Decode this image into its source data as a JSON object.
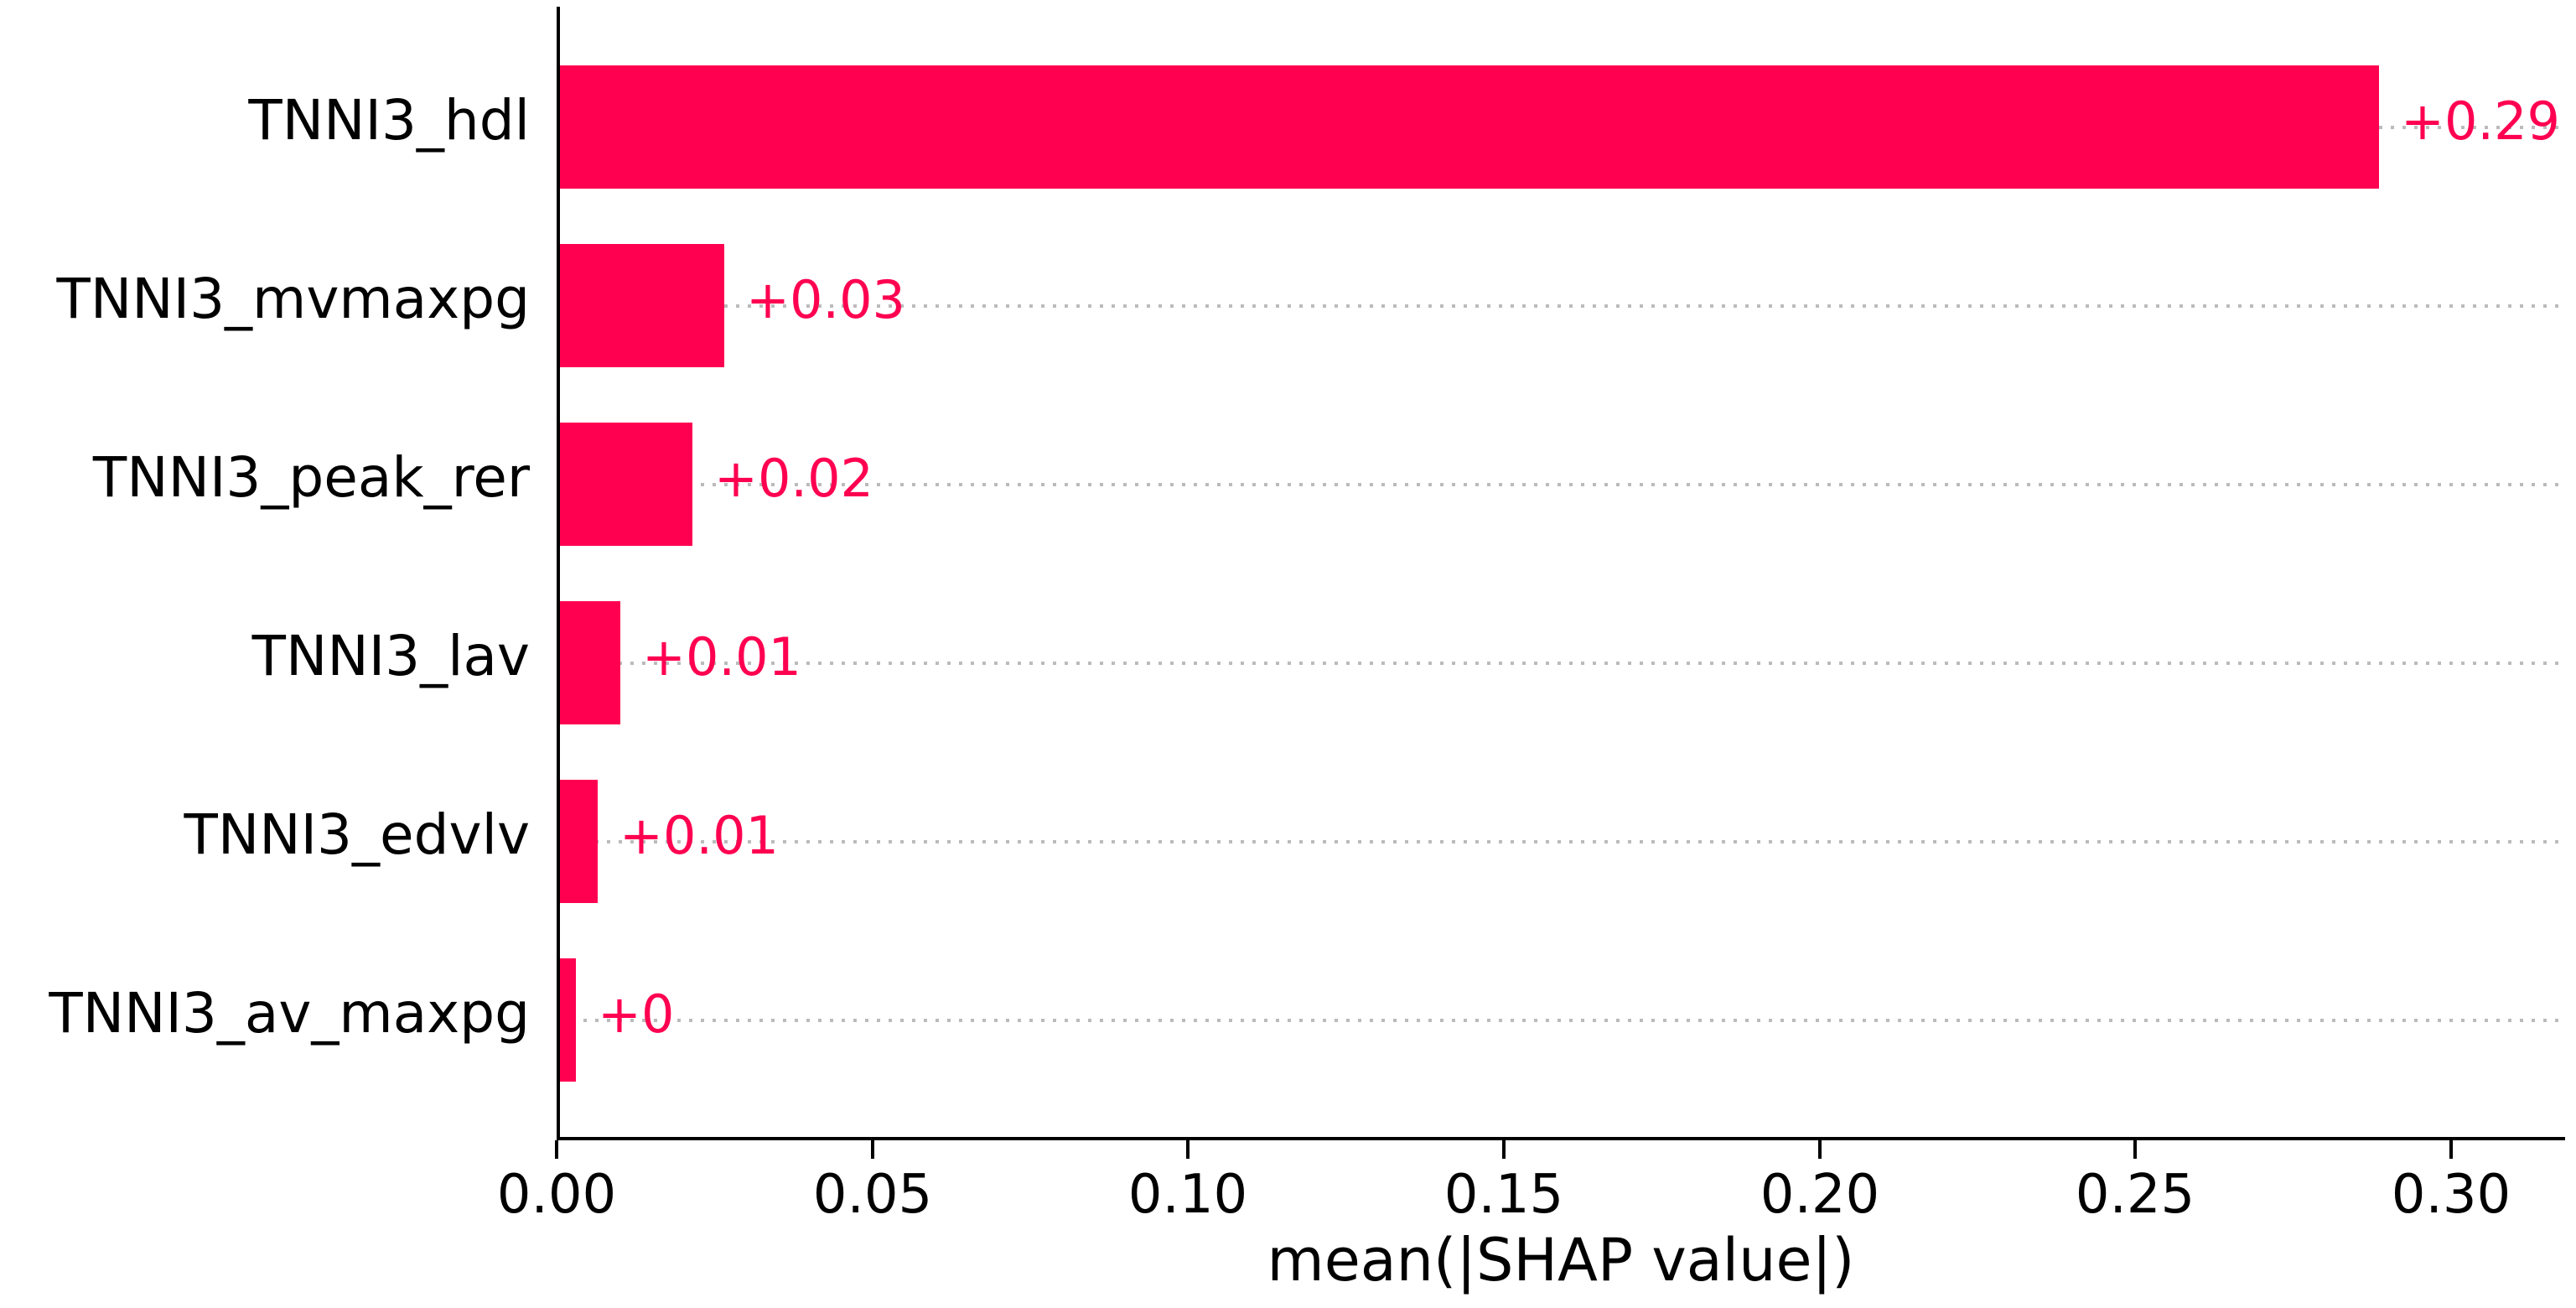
{
  "figure": {
    "background": "#ffffff"
  },
  "colors": {
    "bar": "#ff0051",
    "value_label": "#ff0051",
    "gridline": "#bbbbbb",
    "axis": "#000000",
    "tick_label": "#000000",
    "feature_label": "#000000"
  },
  "chart_data": {
    "type": "bar",
    "orientation": "horizontal",
    "title": "",
    "xlabel": "mean(|SHAP value|)",
    "ylabel": "",
    "categories": [
      "TNNI3_hdl",
      "TNNI3_mvmaxpg",
      "TNNI3_peak_rer",
      "TNNI3_lav",
      "TNNI3_edvlv",
      "TNNI3_av_maxpg"
    ],
    "values": [
      0.288,
      0.026,
      0.021,
      0.0095,
      0.006,
      0.0025
    ],
    "value_labels": [
      "+0.29",
      "+0.03",
      "+0.02",
      "+0.01",
      "+0.01",
      "+0"
    ],
    "xlim": [
      0,
      0.318
    ],
    "xticks": [
      0.0,
      0.05,
      0.1,
      0.15,
      0.2,
      0.25,
      0.3
    ],
    "xtick_labels": [
      "0.00",
      "0.05",
      "0.10",
      "0.15",
      "0.20",
      "0.25",
      "0.30"
    ],
    "grid": "horizontal dotted line per category row",
    "legend_position": "none",
    "bar_color": "#ff0051"
  }
}
